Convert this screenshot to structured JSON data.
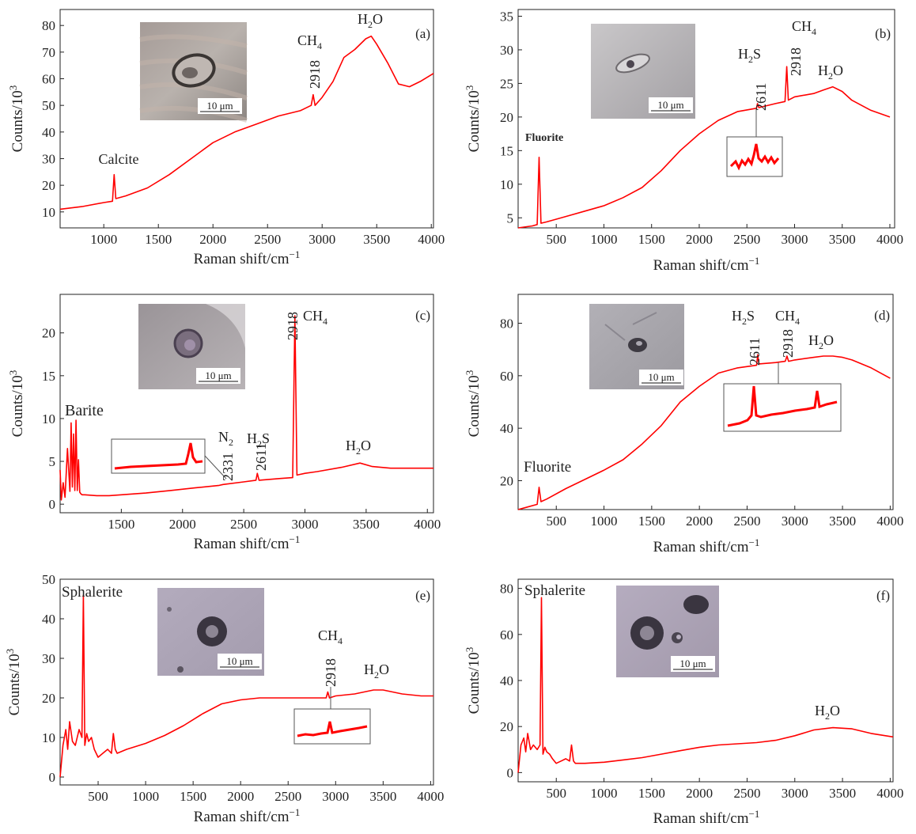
{
  "figure": {
    "x_axis_label": "Raman shift/cm",
    "x_axis_superscript": "−1",
    "y_axis_label": "Counts/10",
    "y_axis_superscript": "3",
    "scale_bar_label": "10 μm"
  },
  "chart_data": [
    {
      "type": "line",
      "panel": "(a)",
      "xlabel": "Raman shift/cm−1",
      "ylabel": "Counts/10^3",
      "xlim": [
        600,
        4020
      ],
      "ylim": [
        4,
        86
      ],
      "xticks": [
        1000,
        1500,
        2000,
        2500,
        3000,
        3500,
        4000
      ],
      "yticks": [
        10,
        20,
        30,
        40,
        50,
        60,
        70,
        80
      ],
      "color": "#ff0000",
      "series": [
        {
          "x": [
            600,
            800,
            1000,
            1080,
            1095,
            1110,
            1200,
            1400,
            1600,
            1800,
            2000,
            2200,
            2400,
            2600,
            2800,
            2900,
            2918,
            2935,
            3000,
            3100,
            3200,
            3300,
            3400,
            3450,
            3500,
            3600,
            3700,
            3800,
            3900,
            4020
          ],
          "y": [
            11,
            12,
            13.5,
            14,
            24,
            15,
            16,
            19,
            24,
            30,
            36,
            40,
            43,
            46,
            48,
            50,
            54,
            50,
            53,
            59,
            68,
            71,
            75,
            76,
            73,
            66,
            58,
            57,
            59,
            62
          ]
        }
      ],
      "peak_labels": [
        {
          "text": "Calcite",
          "x": 1095
        },
        {
          "text": "2918",
          "x": 2918
        },
        {
          "text": "CH",
          "sub": "4"
        },
        {
          "text": "H",
          "sub": "2",
          "tail": "O"
        }
      ],
      "has_inset_micrograph": true
    },
    {
      "type": "line",
      "panel": "(b)",
      "xlabel": "Raman shift/cm−1",
      "ylabel": "Counts/10^3",
      "xlim": [
        100,
        4050
      ],
      "ylim": [
        3.5,
        36
      ],
      "xticks": [
        500,
        1000,
        1500,
        2000,
        2500,
        3000,
        3500,
        4000
      ],
      "yticks": [
        5,
        10,
        15,
        20,
        25,
        30,
        35
      ],
      "color": "#ff0000",
      "series": [
        {
          "x": [
            100,
            250,
            300,
            320,
            340,
            400,
            600,
            800,
            1000,
            1200,
            1400,
            1600,
            1800,
            2000,
            2200,
            2400,
            2600,
            2611,
            2625,
            2800,
            2900,
            2918,
            2935,
            3000,
            3200,
            3300,
            3400,
            3500,
            3600,
            3800,
            4000
          ],
          "y": [
            3.5,
            3.8,
            4.0,
            14,
            4.2,
            4.4,
            5.2,
            6.0,
            6.8,
            8.0,
            9.5,
            12,
            15,
            17.5,
            19.5,
            20.8,
            21.3,
            22,
            21.4,
            22,
            22.3,
            27.5,
            22.5,
            23,
            23.5,
            24,
            24.5,
            23.8,
            22.5,
            21,
            20
          ]
        }
      ],
      "peak_labels": [
        {
          "text": "Fluorite",
          "x": 320
        },
        {
          "text": "2611",
          "x": 2611
        },
        {
          "text": "2918",
          "x": 2918
        },
        {
          "text": "H",
          "sub": "2",
          "tail": "S"
        },
        {
          "text": "CH",
          "sub": "4"
        },
        {
          "text": "H",
          "sub": "2",
          "tail": "O"
        }
      ],
      "has_inset_micrograph": true,
      "has_zoom_inset": true
    },
    {
      "type": "line",
      "panel": "(c)",
      "xlabel": "Raman shift/cm−1",
      "ylabel": "Counts/10^3",
      "xlim": [
        1000,
        4050
      ],
      "ylim": [
        -1,
        24.5
      ],
      "xticks": [
        1500,
        2000,
        2500,
        3000,
        3500,
        4000
      ],
      "yticks": [
        0,
        5,
        10,
        15,
        20
      ],
      "color": "#ff0000",
      "series": [
        {
          "x": [
            1000,
            1010,
            1025,
            1040,
            1060,
            1080,
            1090,
            1100,
            1110,
            1120,
            1130,
            1140,
            1150,
            1160,
            1170,
            1180,
            1200,
            1300,
            1400,
            1500,
            1700,
            1900,
            2100,
            2300,
            2331,
            2500,
            2600,
            2611,
            2625,
            2800,
            2900,
            2918,
            2935,
            3000,
            3100,
            3300,
            3450,
            3550,
            3700,
            3900,
            4050
          ],
          "y": [
            4,
            0.5,
            2.5,
            0.8,
            6.5,
            1.5,
            9.5,
            2,
            8.2,
            1.6,
            9.8,
            1.6,
            5.2,
            1.4,
            1.2,
            1.1,
            1.1,
            1.0,
            1.0,
            1.1,
            1.3,
            1.6,
            1.9,
            2.2,
            2.3,
            2.6,
            2.8,
            3.6,
            2.8,
            3.0,
            3.1,
            22,
            3.4,
            3.6,
            3.8,
            4.3,
            4.8,
            4.4,
            4.2,
            4.2,
            4.2
          ]
        }
      ],
      "peak_labels": [
        {
          "text": "Barite",
          "x": 1130
        },
        {
          "text": "2331",
          "x": 2331
        },
        {
          "text": "N",
          "sub": "2"
        },
        {
          "text": "2611",
          "x": 2611
        },
        {
          "text": "H",
          "sub": "2",
          "tail": "S"
        },
        {
          "text": "2918",
          "x": 2918
        },
        {
          "text": "CH",
          "sub": "4"
        },
        {
          "text": "H",
          "sub": "2",
          "tail": "O"
        }
      ],
      "has_inset_micrograph": true,
      "has_zoom_inset": true
    },
    {
      "type": "line",
      "panel": "(d)",
      "xlabel": "Raman shift/cm−1",
      "ylabel": "Counts/10^3",
      "xlim": [
        100,
        4030
      ],
      "ylim": [
        9,
        91
      ],
      "xticks": [
        500,
        1000,
        1500,
        2000,
        2500,
        3000,
        3500,
        4000
      ],
      "yticks": [
        20,
        40,
        60,
        80
      ],
      "color": "#ff0000",
      "series": [
        {
          "x": [
            100,
            200,
            300,
            320,
            340,
            400,
            600,
            800,
            1000,
            1200,
            1400,
            1600,
            1800,
            2000,
            2200,
            2400,
            2600,
            2611,
            2625,
            2800,
            2900,
            2918,
            2935,
            3000,
            3200,
            3300,
            3400,
            3500,
            3600,
            3800,
            4000
          ],
          "y": [
            9,
            10,
            11,
            17.5,
            12,
            13,
            17,
            20.5,
            24,
            28,
            34,
            41,
            50,
            56,
            61,
            63,
            64,
            68,
            64.5,
            65,
            65.5,
            67.5,
            65.5,
            66,
            67,
            67.5,
            67.5,
            67,
            66,
            63,
            59
          ]
        }
      ],
      "peak_labels": [
        {
          "text": "Fluorite",
          "x": 320
        },
        {
          "text": "2611",
          "x": 2611
        },
        {
          "text": "H",
          "sub": "2",
          "tail": "S"
        },
        {
          "text": "2918",
          "x": 2918
        },
        {
          "text": "CH",
          "sub": "4"
        },
        {
          "text": "H",
          "sub": "2",
          "tail": "O"
        }
      ],
      "has_inset_micrograph": true,
      "has_zoom_inset": true
    },
    {
      "type": "line",
      "panel": "(e)",
      "xlabel": "Raman shift/cm−1",
      "ylabel": "Counts/10^3",
      "xlim": [
        100,
        4030
      ],
      "ylim": [
        -2,
        50
      ],
      "xticks": [
        500,
        1000,
        1500,
        2000,
        2500,
        3000,
        3500,
        4000
      ],
      "yticks": [
        0,
        10,
        20,
        30,
        40,
        50
      ],
      "color": "#ff0000",
      "series": [
        {
          "x": [
            100,
            130,
            160,
            180,
            200,
            230,
            260,
            300,
            330,
            345,
            360,
            380,
            400,
            430,
            460,
            500,
            550,
            600,
            640,
            660,
            680,
            700,
            800,
            1000,
            1200,
            1400,
            1600,
            1800,
            2000,
            2200,
            2400,
            2600,
            2800,
            2900,
            2918,
            2935,
            3000,
            3200,
            3400,
            3500,
            3700,
            3900,
            4030
          ],
          "y": [
            0,
            8,
            12,
            7,
            14,
            9,
            8,
            12,
            10,
            46,
            8,
            11,
            9,
            10,
            7,
            5,
            6,
            7,
            6,
            11,
            7,
            6,
            7,
            8.5,
            10.5,
            13,
            16,
            18.5,
            19.5,
            20,
            20,
            20,
            20,
            20,
            21.5,
            20,
            20.5,
            21,
            22,
            22,
            21,
            20.5,
            20.5
          ]
        }
      ],
      "peak_labels": [
        {
          "text": "Sphalerite",
          "x": 345
        },
        {
          "text": "2918",
          "x": 2918
        },
        {
          "text": "CH",
          "sub": "4"
        },
        {
          "text": "H",
          "sub": "2",
          "tail": "O"
        }
      ],
      "has_inset_micrograph": true,
      "has_zoom_inset": true
    },
    {
      "type": "line",
      "panel": "(f)",
      "xlabel": "Raman shift/cm−1",
      "ylabel": "Counts/10^3",
      "xlim": [
        100,
        4030
      ],
      "ylim": [
        -4,
        84
      ],
      "xticks": [
        500,
        1000,
        1500,
        2000,
        2500,
        3000,
        3500,
        4000
      ],
      "yticks": [
        0,
        20,
        40,
        60,
        80
      ],
      "color": "#ff0000",
      "series": [
        {
          "x": [
            100,
            130,
            160,
            180,
            200,
            230,
            260,
            300,
            330,
            345,
            360,
            380,
            400,
            430,
            460,
            500,
            550,
            600,
            640,
            660,
            680,
            700,
            800,
            1000,
            1200,
            1400,
            1600,
            1800,
            2000,
            2200,
            2400,
            2600,
            2800,
            3000,
            3200,
            3400,
            3600,
            3800,
            4030
          ],
          "y": [
            0,
            12,
            15,
            9,
            17,
            10,
            12,
            10,
            12,
            76,
            8,
            11,
            9,
            8,
            6,
            4,
            5,
            6,
            5,
            12,
            5,
            4,
            4,
            4.5,
            5.5,
            6.5,
            8,
            9.5,
            11,
            12,
            12.5,
            13,
            14,
            16,
            18.5,
            19.5,
            19,
            17,
            15.5
          ]
        }
      ],
      "peak_labels": [
        {
          "text": "Sphalerite",
          "x": 345
        },
        {
          "text": "H",
          "sub": "2",
          "tail": "O"
        }
      ],
      "has_inset_micrograph": true
    }
  ]
}
